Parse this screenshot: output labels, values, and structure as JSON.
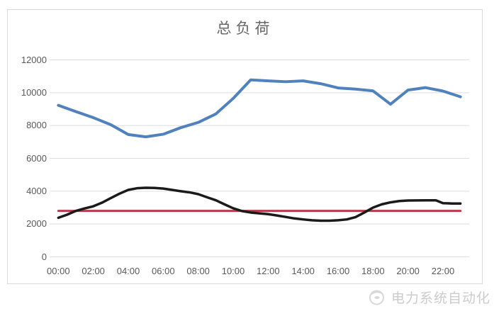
{
  "chart_data": {
    "type": "line",
    "title": "总负荷",
    "grid": true,
    "legend": false,
    "x_axis": {
      "tick_labels": [
        "00:00",
        "02:00",
        "04:00",
        "06:00",
        "08:00",
        "10:00",
        "12:00",
        "14:00",
        "16:00",
        "18:00",
        "20:00",
        "22:00"
      ],
      "tick_hours": [
        0,
        2,
        4,
        6,
        8,
        10,
        12,
        14,
        16,
        18,
        20,
        22
      ],
      "range_hours": [
        0,
        23
      ]
    },
    "y_axis": {
      "min": 0,
      "max": 12000,
      "step": 2000,
      "tick_labels": [
        "0",
        "2000",
        "4000",
        "6000",
        "8000",
        "10000",
        "12000"
      ],
      "tick_values": [
        0,
        2000,
        4000,
        6000,
        8000,
        10000,
        12000
      ]
    },
    "series": [
      {
        "id": "reference-line-red",
        "color": "#b8394a",
        "width": 3,
        "x": [
          0,
          23
        ],
        "values": [
          2800,
          2800
        ]
      },
      {
        "id": "load-curve-blue",
        "color": "#4f81bd",
        "width": 4,
        "x": [
          0,
          1,
          2,
          3,
          4,
          5,
          6,
          7,
          8,
          9,
          10,
          11,
          12,
          13,
          14,
          15,
          16,
          17,
          18,
          19,
          20,
          21,
          22,
          23
        ],
        "values": [
          9230,
          8850,
          8480,
          8050,
          7450,
          7310,
          7470,
          7870,
          8190,
          8700,
          9650,
          10780,
          10720,
          10670,
          10720,
          10550,
          10290,
          10220,
          10110,
          9300,
          10160,
          10310,
          10100,
          9750
        ]
      },
      {
        "id": "load-curve-black",
        "color": "#1a1a1a",
        "width": 3.5,
        "x": [
          0,
          0.5,
          1,
          1.5,
          2,
          2.5,
          3,
          3.5,
          4,
          4.5,
          5,
          5.5,
          6,
          6.5,
          7,
          7.5,
          8,
          8.5,
          9,
          9.5,
          10,
          10.5,
          11,
          11.5,
          12,
          12.5,
          13,
          13.5,
          14,
          14.5,
          15,
          15.5,
          16,
          16.5,
          17,
          17.5,
          18,
          18.5,
          19,
          19.5,
          20,
          21,
          21.6,
          22,
          22.5,
          23
        ],
        "values": [
          2380,
          2570,
          2800,
          2950,
          3080,
          3300,
          3580,
          3850,
          4080,
          4180,
          4210,
          4200,
          4160,
          4080,
          4000,
          3930,
          3820,
          3630,
          3450,
          3200,
          2960,
          2790,
          2700,
          2650,
          2600,
          2520,
          2430,
          2340,
          2280,
          2230,
          2200,
          2200,
          2230,
          2280,
          2420,
          2700,
          3000,
          3200,
          3320,
          3400,
          3430,
          3440,
          3440,
          3270,
          3250,
          3250
        ]
      }
    ],
    "colors": {
      "gridline": "#dcdcdc",
      "axis_label": "#595959",
      "title": "#666666",
      "chart_border": "#d9d9d9"
    }
  },
  "watermark": {
    "text": "电力系统自动化",
    "logo": "power-journal-logo-icon"
  }
}
